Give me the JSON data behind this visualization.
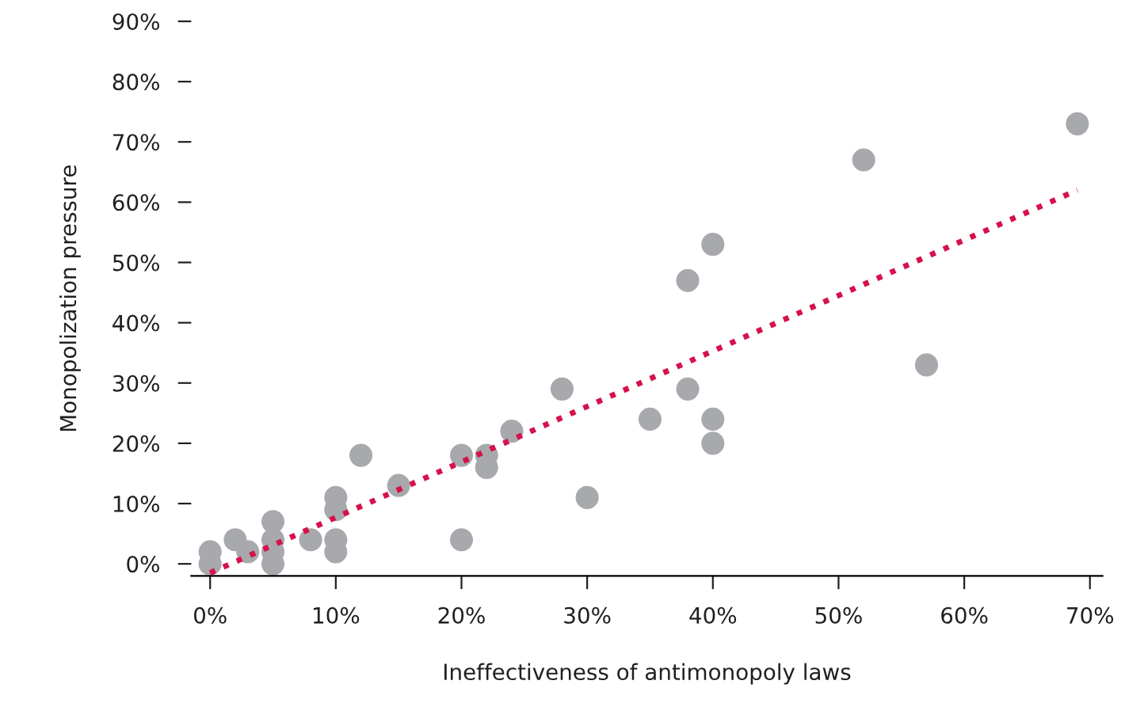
{
  "chart_data": {
    "type": "scatter",
    "xlabel": "Ineffectiveness of antimonopoly laws",
    "ylabel": "Monopolization pressure",
    "xlim": [
      -1.5,
      71
    ],
    "ylim": [
      -2,
      90
    ],
    "xticks": [
      {
        "value": 0,
        "label": "0%"
      },
      {
        "value": 10,
        "label": "10%"
      },
      {
        "value": 20,
        "label": "20%"
      },
      {
        "value": 30,
        "label": "30%"
      },
      {
        "value": 40,
        "label": "40%"
      },
      {
        "value": 50,
        "label": "50%"
      },
      {
        "value": 60,
        "label": "60%"
      },
      {
        "value": 70,
        "label": "70%"
      }
    ],
    "yticks": [
      {
        "value": 0,
        "label": "0%"
      },
      {
        "value": 10,
        "label": "10%"
      },
      {
        "value": 20,
        "label": "20%"
      },
      {
        "value": 30,
        "label": "30%"
      },
      {
        "value": 40,
        "label": "40%"
      },
      {
        "value": 50,
        "label": "50%"
      },
      {
        "value": 60,
        "label": "60%"
      },
      {
        "value": 70,
        "label": "70%"
      },
      {
        "value": 80,
        "label": "80%"
      },
      {
        "value": 90,
        "label": "90%"
      }
    ],
    "grid": false,
    "legend": false,
    "marker": "circle",
    "series": [
      {
        "color": "#a7a9ac",
        "x": [
          0,
          0,
          2,
          3,
          5,
          5,
          5,
          5,
          8,
          10,
          10,
          10,
          10,
          12,
          15,
          20,
          20,
          22,
          22,
          24,
          28,
          30,
          35,
          38,
          38,
          40,
          40,
          40,
          52,
          57,
          69
        ],
        "values": [
          2,
          0,
          4,
          2,
          7,
          4,
          2,
          0,
          4,
          11,
          9,
          4,
          2,
          18,
          13,
          18,
          4,
          18,
          16,
          22,
          29,
          11,
          24,
          47,
          29,
          53,
          24,
          20,
          67,
          33,
          73
        ]
      },
      {
        "type": "line",
        "color": "#d6114b",
        "line_style": "dotted",
        "marker": "none",
        "x": [
          0,
          69
        ],
        "values": [
          -1.5,
          62
        ]
      }
    ]
  }
}
